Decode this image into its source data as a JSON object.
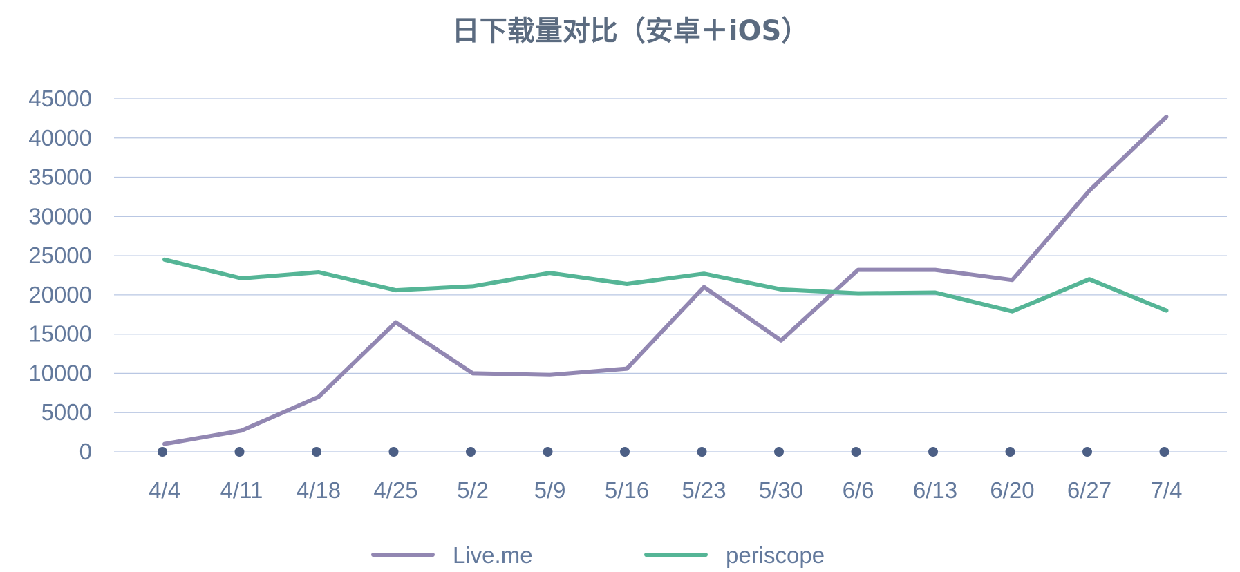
{
  "colors": {
    "title": "#5b6b80",
    "axis_text": "#63799c",
    "grid": "#b9c7e3",
    "marker": "#4c5f85",
    "series_live": "#9287b2",
    "series_periscope": "#55b596"
  },
  "chart_data": {
    "type": "line",
    "title": "日下载量对比（安卓＋iOS）",
    "xlabel": "",
    "ylabel": "",
    "categories": [
      "4/4",
      "4/11",
      "4/18",
      "4/25",
      "5/2",
      "5/9",
      "5/16",
      "5/23",
      "5/30",
      "6/6",
      "6/13",
      "6/20",
      "6/27",
      "7/4"
    ],
    "y_ticks": [
      "0",
      "5000",
      "10000",
      "15000",
      "20000",
      "25000",
      "30000",
      "35000",
      "40000",
      "45000"
    ],
    "ylim": [
      0,
      45000
    ],
    "grid": true,
    "legend_position": "bottom",
    "series": [
      {
        "name": "Live.me",
        "color": "#9287b2",
        "values": [
          1000,
          2700,
          7000,
          16500,
          10000,
          9800,
          10600,
          21000,
          14200,
          23200,
          23200,
          21900,
          33300,
          42700
        ]
      },
      {
        "name": "periscope",
        "color": "#55b596",
        "values": [
          24500,
          22100,
          22900,
          20600,
          21100,
          22800,
          21400,
          22700,
          20700,
          20200,
          20300,
          17900,
          22000,
          18000
        ]
      }
    ]
  }
}
